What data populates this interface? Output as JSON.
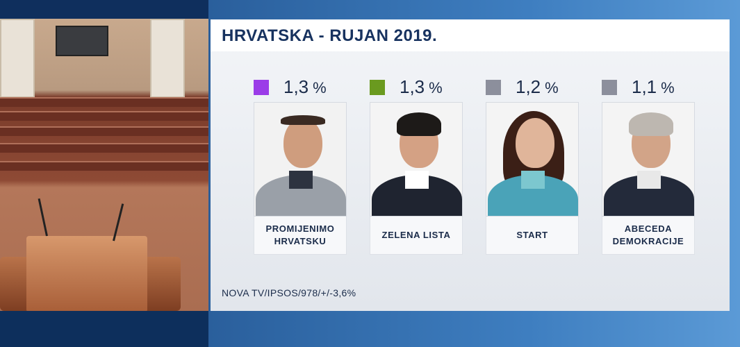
{
  "title": "HRVATSKA - RUJAN 2019.",
  "source": "NOVA TV/IPSOS/978/+/-3,6%",
  "chart_data": {
    "type": "bar",
    "title": "HRVATSKA - RUJAN 2019.",
    "unit": "%",
    "categories": [
      "PROMIJENIMO HRVATSKU",
      "ZELENA LISTA",
      "START",
      "ABECEDA DEMOKRACIJE"
    ],
    "values": [
      1.3,
      1.3,
      1.2,
      1.1
    ],
    "value_labels": [
      "1,3",
      "1,3",
      "1,2",
      "1,1"
    ],
    "colors": [
      "#9b3ce8",
      "#6a9a1f",
      "#8c8f9c",
      "#8c8f9c"
    ]
  },
  "cards": [
    {
      "value": "1,3",
      "unit": "%",
      "label": "PROMIJENIMO\nHRVATSKU",
      "color": "#9b3ce8"
    },
    {
      "value": "1,3",
      "unit": "%",
      "label": "ZELENA LISTA",
      "color": "#6a9a1f"
    },
    {
      "value": "1,2",
      "unit": "%",
      "label": "START",
      "color": "#8c8f9c"
    },
    {
      "value": "1,1",
      "unit": "%",
      "label": "ABECEDA\nDEMOKRACIJE",
      "color": "#8c8f9c"
    }
  ]
}
